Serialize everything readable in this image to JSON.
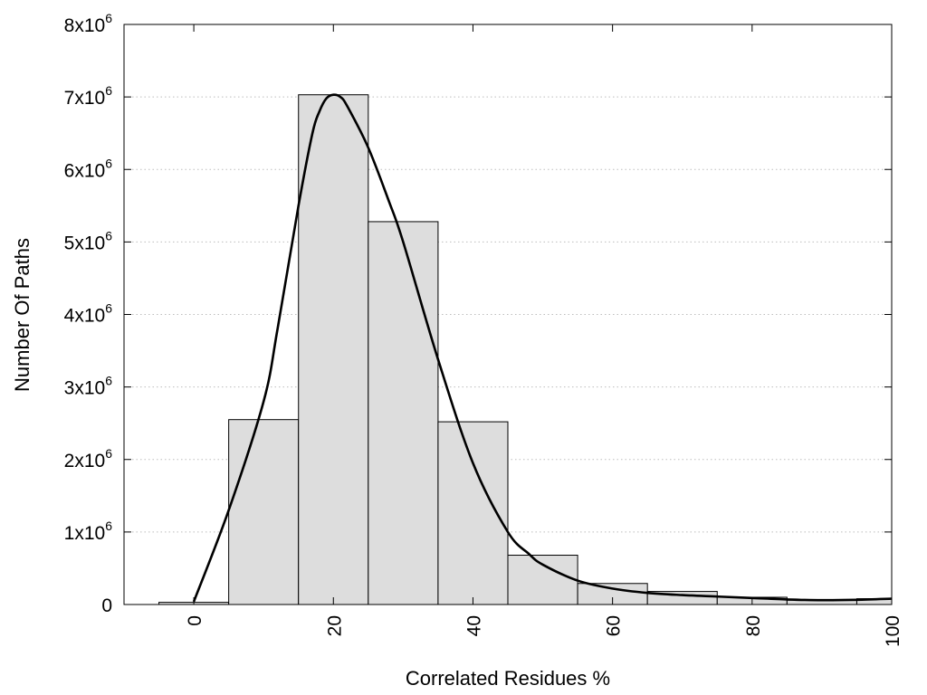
{
  "chart_data": {
    "type": "bar",
    "xlabel": "Correlated Residues %",
    "ylabel": "Number Of Paths",
    "xlim": [
      -10,
      100
    ],
    "ylim": [
      0,
      8000000
    ],
    "x_ticks": [
      0,
      20,
      40,
      60,
      80,
      100
    ],
    "y_ticks": [
      {
        "value": 0,
        "base": "0",
        "exp": ""
      },
      {
        "value": 1000000,
        "base": "1x10",
        "exp": "6"
      },
      {
        "value": 2000000,
        "base": "2x10",
        "exp": "6"
      },
      {
        "value": 3000000,
        "base": "3x10",
        "exp": "6"
      },
      {
        "value": 4000000,
        "base": "4x10",
        "exp": "6"
      },
      {
        "value": 5000000,
        "base": "5x10",
        "exp": "6"
      },
      {
        "value": 6000000,
        "base": "6x10",
        "exp": "6"
      },
      {
        "value": 7000000,
        "base": "7x10",
        "exp": "6"
      },
      {
        "value": 8000000,
        "base": "8x10",
        "exp": "6"
      }
    ],
    "grid": "horizontal-dotted",
    "bin_width": 10,
    "bars": [
      {
        "center": 0,
        "value": 30000
      },
      {
        "center": 10,
        "value": 2550000
      },
      {
        "center": 20,
        "value": 7030000
      },
      {
        "center": 30,
        "value": 5280000
      },
      {
        "center": 40,
        "value": 2520000
      },
      {
        "center": 50,
        "value": 680000
      },
      {
        "center": 60,
        "value": 290000
      },
      {
        "center": 70,
        "value": 180000
      },
      {
        "center": 80,
        "value": 100000
      },
      {
        "center": 90,
        "value": 60000
      },
      {
        "center": 100,
        "value": 80000
      }
    ],
    "curve": {
      "x": [
        0,
        5,
        10,
        12,
        15,
        17,
        18,
        19,
        20,
        21,
        22,
        25,
        28,
        30,
        35,
        40,
        45,
        48,
        50,
        55,
        60,
        65,
        70,
        75,
        80,
        85,
        90,
        95,
        100
      ],
      "y": [
        40000,
        1300000,
        2800000,
        3800000,
        5500000,
        6500000,
        6800000,
        6980000,
        7030000,
        7000000,
        6870000,
        6300000,
        5550000,
        5000000,
        3380000,
        1950000,
        1000000,
        700000,
        550000,
        330000,
        220000,
        160000,
        130000,
        110000,
        90000,
        70000,
        60000,
        65000,
        80000
      ]
    }
  }
}
